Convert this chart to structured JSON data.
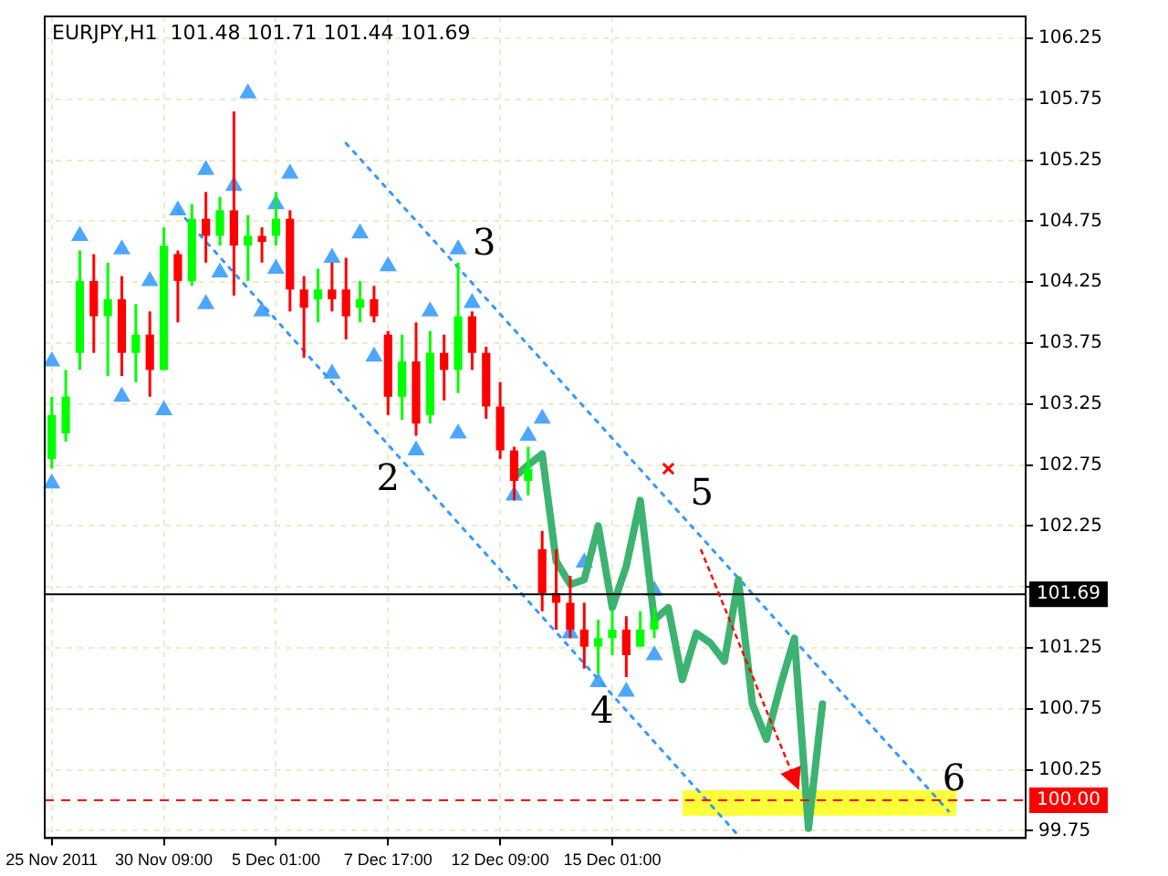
{
  "chart_data": {
    "type": "candlestick",
    "title": "EURJPY,H1  101.48 101.71 101.44 101.69",
    "categories": [
      "25 Nov 2011",
      null,
      null,
      null,
      null,
      null,
      null,
      null,
      "30 Nov 09:00",
      null,
      null,
      null,
      null,
      null,
      null,
      null,
      "5 Dec 01:00",
      null,
      null,
      null,
      null,
      null,
      null,
      null,
      "7 Dec 17:00",
      null,
      null,
      null,
      null,
      null,
      null,
      null,
      "12 Dec 09:00",
      null,
      null,
      null,
      null,
      null,
      null,
      null,
      "15 Dec 01:00",
      null,
      null,
      null,
      null,
      null,
      null,
      null,
      null,
      null,
      null,
      null,
      null,
      null,
      null,
      null,
      null,
      null,
      null,
      null,
      null,
      null,
      null,
      null,
      null,
      null,
      null,
      null,
      null,
      null
    ],
    "series": [
      {
        "type": "candlestick",
        "ohlc": [
          [
            102.8,
            103.31,
            102.72,
            103.16
          ],
          [
            103.01,
            103.53,
            102.94,
            103.31
          ],
          [
            103.67,
            104.51,
            103.53,
            104.26
          ],
          [
            104.26,
            104.48,
            103.67,
            103.97
          ],
          [
            103.97,
            104.41,
            103.48,
            104.11
          ],
          [
            104.11,
            104.3,
            103.48,
            103.67
          ],
          [
            103.67,
            104.07,
            103.43,
            103.82
          ],
          [
            103.82,
            104.01,
            103.31,
            103.53
          ],
          [
            103.53,
            104.7,
            103.53,
            104.55
          ],
          [
            104.48,
            104.51,
            103.92,
            104.26
          ],
          [
            104.26,
            104.89,
            104.22,
            104.77
          ],
          [
            104.77,
            104.99,
            104.41,
            104.63
          ],
          [
            104.63,
            104.95,
            104.55,
            104.84
          ],
          [
            104.84,
            105.65,
            104.14,
            104.55
          ],
          [
            104.55,
            104.8,
            104.26,
            104.63
          ],
          [
            104.63,
            104.7,
            104.41,
            104.58
          ],
          [
            104.63,
            104.99,
            104.55,
            104.77
          ],
          [
            104.77,
            104.84,
            104.01,
            104.19
          ],
          [
            104.19,
            104.3,
            103.63,
            104.04
          ],
          [
            104.11,
            104.36,
            103.92,
            104.19
          ],
          [
            104.19,
            104.41,
            104.01,
            104.11
          ],
          [
            104.19,
            104.45,
            103.78,
            103.97
          ],
          [
            104.04,
            104.26,
            103.92,
            104.11
          ],
          [
            104.11,
            104.22,
            103.92,
            103.97
          ],
          [
            103.82,
            103.85,
            103.16,
            103.31
          ],
          [
            103.31,
            103.82,
            103.12,
            103.6
          ],
          [
            103.6,
            103.92,
            102.99,
            103.09
          ],
          [
            103.16,
            103.85,
            103.09,
            103.67
          ],
          [
            103.67,
            103.82,
            103.28,
            103.53
          ],
          [
            103.53,
            104.41,
            103.34,
            103.97
          ],
          [
            103.97,
            104.01,
            103.53,
            103.67
          ],
          [
            103.67,
            103.72,
            103.13,
            103.23
          ],
          [
            103.23,
            103.43,
            102.8,
            102.87
          ],
          [
            102.87,
            102.9,
            102.46,
            102.62
          ],
          [
            102.62,
            102.9,
            102.5,
            102.72
          ],
          [
            102.06,
            102.21,
            101.55,
            101.7
          ],
          [
            101.7,
            102.06,
            101.4,
            101.62
          ],
          [
            101.62,
            101.84,
            101.33,
            101.4
          ],
          [
            101.4,
            101.62,
            101.08,
            101.26
          ],
          [
            101.26,
            101.48,
            101.04,
            101.33
          ],
          [
            101.33,
            101.55,
            101.19,
            101.4
          ],
          [
            101.4,
            101.51,
            101.01,
            101.19
          ],
          [
            101.26,
            101.55,
            101.26,
            101.4
          ],
          [
            101.4,
            101.58,
            101.33,
            101.48
          ],
          null,
          null,
          null,
          null,
          null,
          null,
          null,
          null,
          null,
          null,
          null,
          null,
          null,
          null,
          null,
          null,
          null,
          null,
          null,
          null,
          null,
          null,
          null,
          null,
          null,
          null
        ],
        "colors": [
          "#00ff00",
          "#00ff00",
          "#00ff00",
          "#ff0000",
          "#00ff00",
          "#ff0000",
          "#00ff00",
          "#ff0000",
          "#00ff00",
          "#ff0000",
          "#00ff00",
          "#ff0000",
          "#00ff00",
          "#ff0000",
          "#00ff00",
          "#ff0000",
          "#00ff00",
          "#ff0000",
          "#ff0000",
          "#00ff00",
          "#ff0000",
          "#ff0000",
          "#00ff00",
          "#ff0000",
          "#ff0000",
          "#00ff00",
          "#ff0000",
          "#00ff00",
          "#ff0000",
          "#00ff00",
          "#ff0000",
          "#ff0000",
          "#ff0000",
          "#ff0000",
          "#00ff00",
          "#ff0000",
          "#ff0000",
          "#ff0000",
          "#ff0000",
          "#00ff00",
          "#00ff00",
          "#ff0000",
          "#00ff00",
          "#00ff00",
          null,
          null,
          null,
          null,
          null,
          null,
          null,
          null,
          null,
          null,
          null,
          null,
          null,
          null,
          null,
          null,
          null,
          null,
          null,
          null,
          null,
          null,
          null,
          null,
          null,
          null
        ]
      },
      {
        "type": "line",
        "color": "#3cb371",
        "line_style": "solid",
        "values": [
          null,
          null,
          null,
          null,
          null,
          null,
          null,
          null,
          null,
          null,
          null,
          null,
          null,
          null,
          null,
          null,
          null,
          null,
          null,
          null,
          null,
          null,
          null,
          null,
          null,
          null,
          null,
          null,
          null,
          null,
          null,
          null,
          null,
          102.65,
          102.75,
          102.84,
          101.96,
          101.77,
          101.81,
          102.25,
          101.58,
          101.92,
          102.46,
          101.48,
          101.58,
          100.99,
          101.37,
          101.29,
          101.14,
          101.81,
          100.79,
          100.5,
          100.94,
          101.33,
          99.77,
          100.79,
          null,
          null,
          null,
          null,
          null,
          null,
          null,
          null,
          null,
          null,
          null,
          null,
          null,
          null
        ]
      },
      {
        "type": "line",
        "color": "#3399ff",
        "line_style": "dotted",
        "values": [
          null,
          null,
          null,
          null,
          null,
          null,
          null,
          null,
          null,
          null,
          null,
          null,
          null,
          null,
          null,
          null,
          null,
          null,
          null,
          null,
          null,
          105.39,
          null,
          null,
          null,
          null,
          null,
          null,
          null,
          null,
          null,
          null,
          null,
          null,
          null,
          null,
          null,
          null,
          null,
          null,
          null,
          null,
          null,
          null,
          null,
          null,
          null,
          null,
          null,
          null,
          null,
          null,
          null,
          null,
          null,
          null,
          null,
          null,
          null,
          null,
          null,
          null,
          null,
          null,
          99.91,
          null,
          null,
          null,
          null,
          null
        ]
      },
      {
        "type": "line",
        "color": "#3399ff",
        "line_style": "dotted",
        "values": [
          null,
          null,
          null,
          null,
          null,
          null,
          null,
          null,
          null,
          104.84,
          null,
          null,
          null,
          null,
          null,
          null,
          null,
          null,
          null,
          null,
          null,
          null,
          null,
          null,
          null,
          null,
          null,
          null,
          null,
          null,
          null,
          null,
          null,
          null,
          null,
          null,
          null,
          null,
          null,
          null,
          null,
          null,
          null,
          null,
          null,
          null,
          null,
          null,
          null,
          99.71,
          null,
          null,
          null,
          null,
          null,
          null,
          null,
          null,
          null,
          null,
          null,
          null,
          null,
          null,
          null,
          null,
          null,
          null,
          null,
          null
        ]
      },
      {
        "type": "scatter",
        "color": "#4da6ff",
        "marker": "triangle",
        "values": [
          103.6,
          null,
          104.63,
          null,
          null,
          104.52,
          null,
          104.26,
          null,
          104.84,
          null,
          105.17,
          null,
          105.04,
          105.8,
          null,
          104.89,
          105.14,
          null,
          null,
          104.45,
          null,
          104.65,
          null,
          104.38,
          null,
          null,
          104.01,
          null,
          104.52,
          104.08,
          null,
          null,
          null,
          102.99,
          103.13,
          null,
          null,
          101.95,
          null,
          null,
          null,
          null,
          101.72,
          null,
          null,
          null,
          null,
          null,
          null,
          null,
          null,
          null,
          null,
          null,
          null,
          null,
          null,
          null,
          null,
          null,
          null,
          null,
          null,
          null,
          null,
          null,
          null,
          null,
          null
        ]
      },
      {
        "type": "scatter",
        "color": "#4da6ff",
        "marker": "triangle",
        "values": [
          102.6,
          null,
          null,
          null,
          null,
          103.31,
          null,
          null,
          103.2,
          null,
          null,
          104.07,
          104.33,
          null,
          null,
          104.01,
          104.36,
          null,
          null,
          null,
          103.5,
          null,
          null,
          103.64,
          null,
          null,
          102.87,
          null,
          null,
          103.01,
          null,
          null,
          null,
          102.5,
          null,
          null,
          null,
          101.37,
          null,
          100.97,
          null,
          100.89,
          null,
          101.19,
          null,
          null,
          null,
          null,
          null,
          null,
          null,
          null,
          null,
          null,
          null,
          null,
          null,
          null,
          null,
          null,
          null,
          null,
          null,
          null,
          null,
          null,
          null,
          null,
          null,
          null
        ]
      },
      {
        "type": "scatter",
        "color": "#ff0000",
        "marker": "cross",
        "values": [
          null,
          null,
          null,
          null,
          null,
          null,
          null,
          null,
          null,
          null,
          null,
          null,
          null,
          null,
          null,
          null,
          null,
          null,
          null,
          null,
          null,
          null,
          null,
          null,
          null,
          null,
          null,
          null,
          null,
          null,
          null,
          null,
          null,
          null,
          null,
          null,
          null,
          null,
          null,
          null,
          null,
          null,
          null,
          null,
          102.72,
          null,
          null,
          null,
          null,
          null,
          null,
          null,
          null,
          null,
          null,
          null,
          null,
          null,
          null,
          null,
          null,
          null,
          null,
          null,
          null,
          null,
          null,
          null,
          null,
          null
        ]
      }
    ],
    "ylim": [
      99.69,
      106.43
    ],
    "yticks": [
      99.75,
      100.25,
      100.75,
      101.25,
      {
        "value": 101.75,
        "label": null
      },
      102.25,
      102.75,
      103.25,
      103.75,
      104.25,
      104.75,
      105.25,
      105.75,
      106.25
    ],
    "ref_lines": [
      {
        "axis": "y",
        "value": 100,
        "label": "100.00",
        "color": "#ff0000",
        "line_style": "dashed"
      },
      {
        "axis": "y",
        "value": 101.69,
        "label": "101.69",
        "color": "#000000",
        "line_style": "solid"
      }
    ],
    "annotations": [
      "2",
      "3",
      "4",
      "5",
      "6"
    ],
    "grid": true,
    "legend": false
  }
}
